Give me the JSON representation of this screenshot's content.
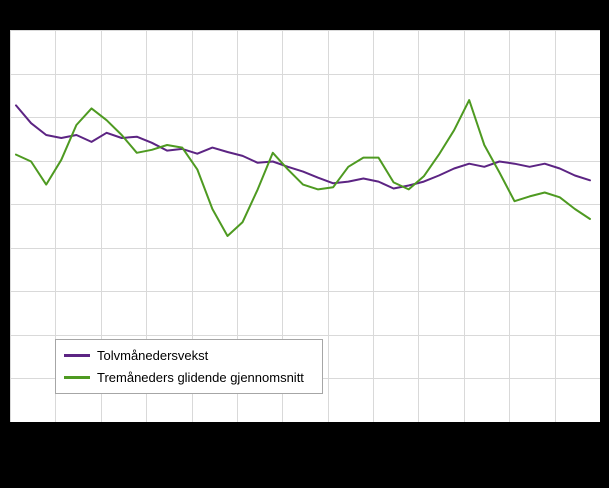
{
  "chart_data": {
    "type": "line",
    "title": "",
    "xlabel": "",
    "ylabel": "",
    "ylim": [
      0,
      9
    ],
    "grid": {
      "on": true,
      "rows": 9,
      "cols": 13,
      "color": "#d9d9d9"
    },
    "legend_position": "bottom-left",
    "panel_background": "#ffffff",
    "outer_background": "#000000",
    "series": [
      {
        "name": "Tolvmånedersvekst",
        "color": "#5c2483",
        "values": [
          7.27,
          6.86,
          6.59,
          6.52,
          6.59,
          6.43,
          6.64,
          6.52,
          6.55,
          6.41,
          6.23,
          6.27,
          6.16,
          6.3,
          6.2,
          6.11,
          5.95,
          5.98,
          5.86,
          5.75,
          5.61,
          5.48,
          5.52,
          5.59,
          5.52,
          5.36,
          5.43,
          5.52,
          5.66,
          5.82,
          5.93,
          5.86,
          5.98,
          5.93,
          5.86,
          5.93,
          5.82,
          5.66,
          5.55
        ]
      },
      {
        "name": "Tremåneders glidende gjennomsnitt",
        "color": "#4e9a21",
        "values": [
          6.14,
          5.98,
          5.45,
          6.02,
          6.82,
          7.2,
          6.93,
          6.59,
          6.18,
          6.25,
          6.36,
          6.3,
          5.8,
          4.89,
          4.27,
          4.59,
          5.34,
          6.18,
          5.8,
          5.45,
          5.34,
          5.39,
          5.86,
          6.07,
          6.07,
          5.5,
          5.34,
          5.64,
          6.14,
          6.7,
          7.39,
          6.36,
          5.73,
          5.07,
          5.18,
          5.27,
          5.16,
          4.89,
          4.66
        ]
      }
    ]
  },
  "legend": {
    "items": [
      {
        "label": "Tolvmånedersvekst",
        "color": "#5c2483"
      },
      {
        "label": "Tremåneders glidende gjennomsnitt",
        "color": "#4e9a21"
      }
    ]
  }
}
